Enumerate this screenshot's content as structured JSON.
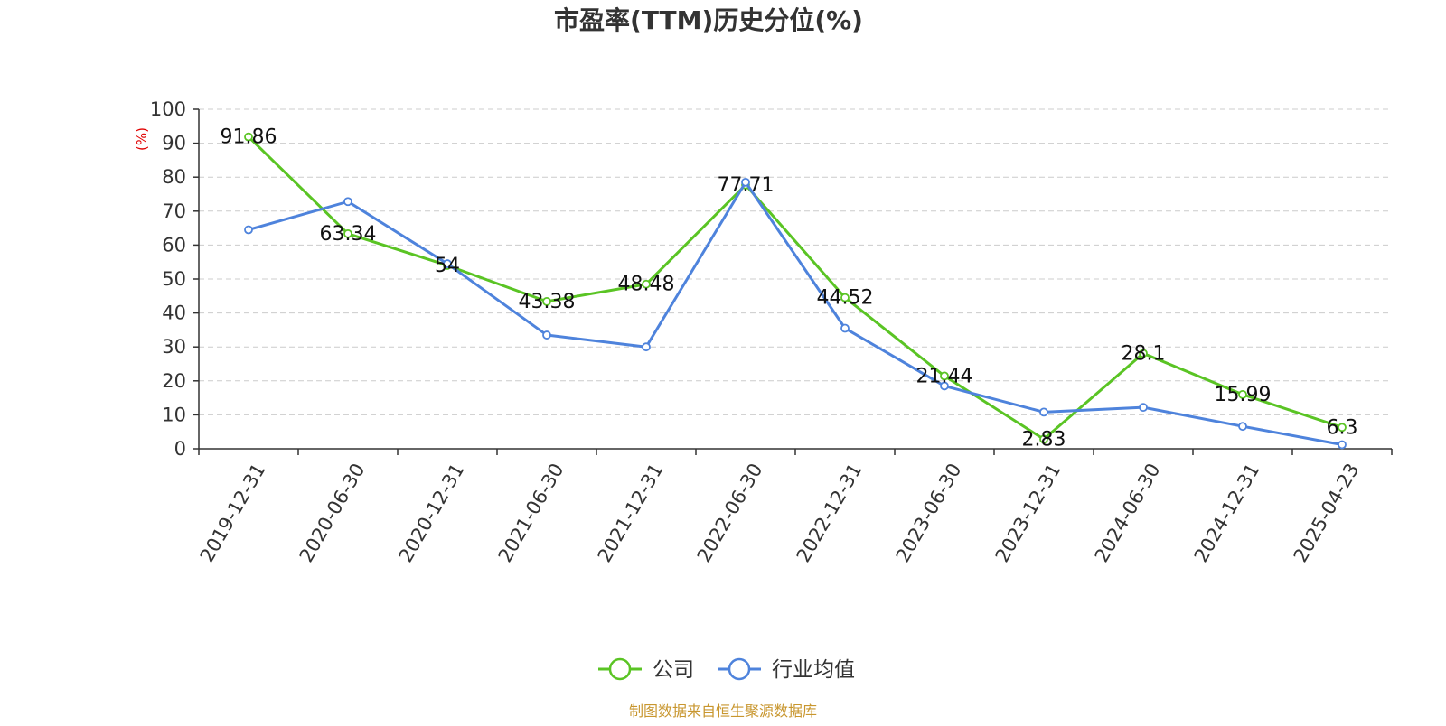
{
  "chart_data": {
    "type": "line",
    "title": "市盈率(TTM)历史分位(%)",
    "ylabel": "(%)",
    "xlabel": "",
    "ylim": [
      0,
      100
    ],
    "yticks": [
      0,
      10,
      20,
      30,
      40,
      50,
      60,
      70,
      80,
      90,
      100
    ],
    "grid": true,
    "legend_position": "bottom-center",
    "categories": [
      "2019-12-31",
      "2020-06-30",
      "2020-12-31",
      "2021-06-30",
      "2021-12-31",
      "2022-06-30",
      "2022-12-31",
      "2023-06-30",
      "2023-12-31",
      "2024-06-30",
      "2024-12-31",
      "2025-04-23"
    ],
    "series": [
      {
        "name": "公司",
        "color": "#5ac424",
        "values": [
          91.86,
          63.34,
          54,
          43.38,
          48.48,
          77.71,
          44.52,
          21.44,
          2.83,
          28.1,
          15.99,
          6.3
        ],
        "data_labels": [
          "91.86",
          "63.34",
          "54",
          "43.38",
          "48.48",
          "77.71",
          "44.52",
          "21.44",
          "2.83",
          "28.1",
          "15.99",
          "6.3"
        ]
      },
      {
        "name": "行业均值",
        "color": "#4e83dc",
        "values": [
          64.5,
          72.8,
          54.5,
          33.5,
          30.0,
          78.5,
          35.5,
          18.5,
          10.8,
          12.2,
          6.6,
          1.2
        ]
      }
    ],
    "footer": "制图数据来自恒生聚源数据库"
  },
  "colors": {
    "title": "#333333",
    "axis": "#333333",
    "grid": "#cccccc",
    "ylabel": "#e00000",
    "footer": "#c8962e"
  }
}
